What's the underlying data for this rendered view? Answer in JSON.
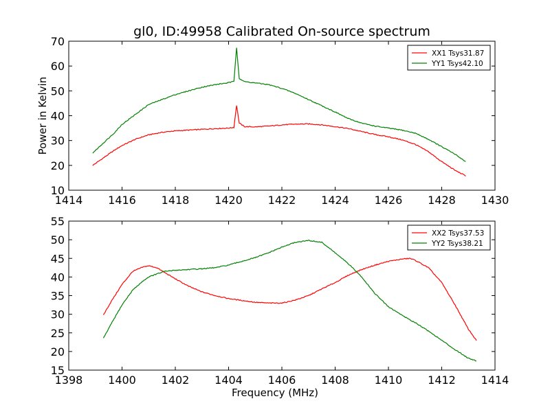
{
  "chart_data": [
    {
      "type": "line",
      "title": "gl0, ID:49958 Calibrated On-source spectrum",
      "xlabel": "",
      "ylabel": "Power in Kelvin",
      "xlim": [
        1414,
        1430
      ],
      "ylim": [
        10,
        70
      ],
      "xticks": [
        "1414",
        "1416",
        "1418",
        "1420",
        "1422",
        "1424",
        "1426",
        "1428",
        "1430"
      ],
      "yticks": [
        "10",
        "20",
        "30",
        "40",
        "50",
        "60",
        "70"
      ],
      "legend_position": "top-right",
      "grid": false,
      "series": [
        {
          "name": "XX1 Tsys31.87",
          "color": "#ff0000",
          "x": [
            1414.9,
            1415.3,
            1415.7,
            1416.0,
            1416.5,
            1417.0,
            1417.5,
            1418.0,
            1418.5,
            1419.0,
            1419.5,
            1420.0,
            1420.2,
            1420.3,
            1420.4,
            1420.6,
            1421.0,
            1421.5,
            1422.0,
            1422.5,
            1423.0,
            1423.5,
            1424.0,
            1424.5,
            1425.0,
            1425.5,
            1426.0,
            1426.5,
            1427.0,
            1427.5,
            1428.0,
            1428.5,
            1428.9
          ],
          "y": [
            20,
            23,
            26,
            28,
            30.5,
            32.3,
            33.3,
            33.9,
            34.2,
            34.5,
            34.8,
            35.0,
            35.3,
            44.2,
            37.0,
            35.6,
            35.5,
            35.8,
            36.3,
            36.6,
            36.7,
            36.3,
            35.6,
            34.8,
            33.6,
            32.4,
            31.5,
            30.3,
            28.5,
            25.5,
            21.5,
            18.0,
            15.8
          ]
        },
        {
          "name": "YY1 Tsys42.10",
          "color": "#008000",
          "x": [
            1414.9,
            1415.3,
            1415.7,
            1416.0,
            1416.5,
            1417.0,
            1417.5,
            1418.0,
            1418.5,
            1419.0,
            1419.5,
            1420.0,
            1420.2,
            1420.3,
            1420.4,
            1420.6,
            1421.0,
            1421.5,
            1422.0,
            1422.5,
            1423.0,
            1423.5,
            1424.0,
            1424.5,
            1425.0,
            1425.5,
            1426.0,
            1426.5,
            1427.0,
            1427.5,
            1428.0,
            1428.5,
            1428.9
          ],
          "y": [
            25,
            29,
            33,
            36.5,
            40.5,
            44.5,
            46.5,
            48.5,
            50,
            51.5,
            52.5,
            53.3,
            53.8,
            67.5,
            55,
            53.7,
            53.2,
            52.5,
            51,
            49,
            46.5,
            44,
            41.5,
            38.8,
            37,
            35.8,
            35.0,
            34.2,
            33.0,
            30.5,
            27.5,
            24.5,
            21.5
          ]
        }
      ]
    },
    {
      "type": "line",
      "title": "",
      "xlabel": "Frequency (MHz)",
      "ylabel": "",
      "xlim": [
        1398,
        1414
      ],
      "ylim": [
        15,
        55
      ],
      "xticks": [
        "1398",
        "1400",
        "1402",
        "1404",
        "1406",
        "1408",
        "1410",
        "1412",
        "1414"
      ],
      "yticks": [
        "15",
        "20",
        "25",
        "30",
        "35",
        "40",
        "45",
        "50",
        "55"
      ],
      "legend_position": "top-right",
      "grid": false,
      "series": [
        {
          "name": "XX2 Tsys37.53",
          "color": "#ff0000",
          "x": [
            1399.3,
            1399.6,
            1400.0,
            1400.4,
            1400.8,
            1401.0,
            1401.3,
            1401.6,
            1402.0,
            1402.5,
            1403.0,
            1403.5,
            1404.0,
            1404.5,
            1405.0,
            1405.5,
            1406.0,
            1406.5,
            1407.0,
            1407.5,
            1408.0,
            1408.5,
            1409.0,
            1409.5,
            1410.0,
            1410.5,
            1410.8,
            1411.0,
            1411.5,
            1412.0,
            1412.5,
            1413.0,
            1413.3
          ],
          "y": [
            29.8,
            33.5,
            38.0,
            41.5,
            42.7,
            43.0,
            42.5,
            41.2,
            39.5,
            37.5,
            36.0,
            35.0,
            34.2,
            33.7,
            33.2,
            33.0,
            33.0,
            33.8,
            35.0,
            36.8,
            38.5,
            40.5,
            42.0,
            43.2,
            44.2,
            44.8,
            45.0,
            44.5,
            42.5,
            38.5,
            32.5,
            26.0,
            23.0
          ]
        },
        {
          "name": "YY2 Tsys38.21",
          "color": "#008000",
          "x": [
            1399.3,
            1399.6,
            1400.0,
            1400.4,
            1400.8,
            1401.0,
            1401.3,
            1401.6,
            1402.0,
            1402.5,
            1403.0,
            1403.5,
            1404.0,
            1404.5,
            1405.0,
            1405.5,
            1406.0,
            1406.5,
            1407.0,
            1407.5,
            1408.0,
            1408.5,
            1409.0,
            1409.5,
            1410.0,
            1410.5,
            1410.8,
            1411.0,
            1411.5,
            1412.0,
            1412.5,
            1413.0,
            1413.3
          ],
          "y": [
            23.5,
            27.5,
            32.5,
            36.5,
            39.0,
            40.0,
            40.8,
            41.5,
            41.8,
            42.0,
            42.2,
            42.5,
            43.2,
            44.2,
            45.2,
            46.5,
            48.0,
            49.3,
            49.8,
            49.3,
            46.5,
            43.5,
            40.0,
            35.5,
            32.0,
            29.8,
            28.5,
            27.8,
            25.5,
            23.0,
            20.5,
            18.2,
            17.5
          ]
        }
      ]
    }
  ]
}
